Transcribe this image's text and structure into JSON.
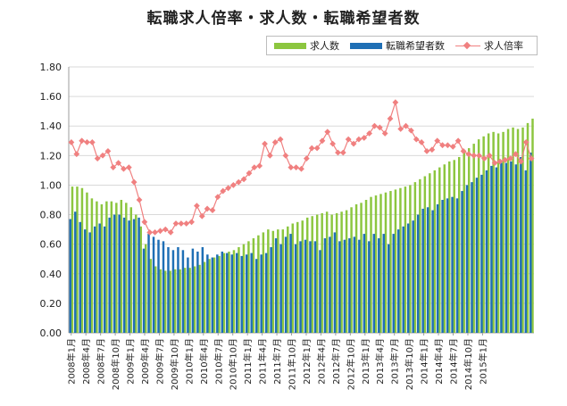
{
  "title": "転職求人倍率・求人数・転職希望者数",
  "legend": {
    "job_openings": "求人数",
    "job_seekers": "転職希望者数",
    "ratio": "求人倍率"
  },
  "colors": {
    "job_openings": "#8cc63f",
    "job_seekers": "#1f6fb5",
    "ratio": "#f08080",
    "grid": "#d9d9d9"
  },
  "chart_data": {
    "type": "bar",
    "title": "転職求人倍率・求人数・転職希望者数",
    "xlabel": "",
    "ylabel": "",
    "ylim": [
      0,
      1.8
    ],
    "yticks": [
      "0.00",
      "0.20",
      "0.40",
      "0.60",
      "0.80",
      "1.00",
      "1.20",
      "1.40",
      "1.60",
      "1.80"
    ],
    "grid": "horizontal",
    "legend_position": "top-right",
    "x_tick_labels": [
      "2008年1月",
      "2008年4月",
      "2008年7月",
      "2008年10月",
      "2009年1月",
      "2009年4月",
      "2009年7月",
      "2009年10月",
      "2010年1月",
      "2010年4月",
      "2010年7月",
      "2010年10月",
      "2011年1月",
      "2011年4月",
      "2011年7月",
      "2011年10月",
      "2012年1月",
      "2012年4月",
      "2012年7月",
      "2012年10月",
      "2013年1月",
      "2013年4月",
      "2013年7月",
      "2013年10月",
      "2014年1月",
      "2014年4月",
      "2014年7月",
      "2014年10月",
      "2015年1月"
    ],
    "x_start": "2008年1月",
    "series": [
      {
        "name": "求人数",
        "type": "bar",
        "values": [
          0.99,
          0.99,
          0.98,
          0.95,
          0.91,
          0.89,
          0.87,
          0.89,
          0.89,
          0.88,
          0.9,
          0.88,
          0.85,
          0.8,
          0.72,
          0.6,
          0.5,
          0.45,
          0.43,
          0.42,
          0.42,
          0.43,
          0.43,
          0.44,
          0.44,
          0.45,
          0.46,
          0.48,
          0.5,
          0.51,
          0.52,
          0.54,
          0.55,
          0.56,
          0.58,
          0.6,
          0.62,
          0.64,
          0.66,
          0.68,
          0.7,
          0.69,
          0.7,
          0.7,
          0.72,
          0.74,
          0.75,
          0.76,
          0.78,
          0.79,
          0.8,
          0.81,
          0.82,
          0.8,
          0.81,
          0.82,
          0.83,
          0.85,
          0.87,
          0.88,
          0.9,
          0.92,
          0.93,
          0.94,
          0.95,
          0.96,
          0.97,
          0.98,
          0.99,
          1.0,
          1.02,
          1.04,
          1.06,
          1.08,
          1.1,
          1.12,
          1.14,
          1.16,
          1.17,
          1.19,
          1.22,
          1.25,
          1.28,
          1.31,
          1.33,
          1.35,
          1.36,
          1.35,
          1.36,
          1.38,
          1.39,
          1.38,
          1.39,
          1.42,
          1.45
        ]
      },
      {
        "name": "転職希望者数",
        "type": "bar",
        "values": [
          0.77,
          0.82,
          0.75,
          0.7,
          0.68,
          0.72,
          0.74,
          0.72,
          0.78,
          0.8,
          0.8,
          0.78,
          0.76,
          0.77,
          0.78,
          0.57,
          0.67,
          0.65,
          0.63,
          0.62,
          0.58,
          0.56,
          0.58,
          0.56,
          0.51,
          0.57,
          0.55,
          0.58,
          0.53,
          0.51,
          0.53,
          0.55,
          0.54,
          0.53,
          0.54,
          0.52,
          0.53,
          0.54,
          0.5,
          0.53,
          0.54,
          0.58,
          0.64,
          0.6,
          0.65,
          0.67,
          0.6,
          0.62,
          0.63,
          0.62,
          0.62,
          0.56,
          0.64,
          0.65,
          0.68,
          0.62,
          0.63,
          0.64,
          0.65,
          0.63,
          0.67,
          0.62,
          0.67,
          0.64,
          0.67,
          0.6,
          0.67,
          0.7,
          0.72,
          0.74,
          0.76,
          0.8,
          0.84,
          0.85,
          0.83,
          0.87,
          0.9,
          0.91,
          0.92,
          0.91,
          0.96,
          1.0,
          1.02,
          1.05,
          1.07,
          1.1,
          1.13,
          1.12,
          1.15,
          1.15,
          1.16,
          1.14,
          1.19,
          1.1,
          1.22
        ]
      },
      {
        "name": "求人倍率",
        "type": "line",
        "values": [
          1.29,
          1.21,
          1.3,
          1.29,
          1.29,
          1.18,
          1.2,
          1.23,
          1.12,
          1.15,
          1.11,
          1.12,
          1.02,
          0.9,
          0.75,
          0.68,
          0.68,
          0.69,
          0.7,
          0.68,
          0.74,
          0.74,
          0.74,
          0.75,
          0.86,
          0.79,
          0.84,
          0.83,
          0.92,
          0.96,
          0.98,
          1.0,
          1.02,
          1.04,
          1.08,
          1.12,
          1.13,
          1.28,
          1.2,
          1.29,
          1.31,
          1.2,
          1.12,
          1.12,
          1.11,
          1.18,
          1.25,
          1.25,
          1.3,
          1.36,
          1.28,
          1.22,
          1.22,
          1.31,
          1.28,
          1.31,
          1.32,
          1.35,
          1.4,
          1.39,
          1.35,
          1.45,
          1.56,
          1.38,
          1.4,
          1.37,
          1.31,
          1.29,
          1.23,
          1.24,
          1.3,
          1.27,
          1.27,
          1.26,
          1.3,
          1.23,
          1.21,
          1.2,
          1.2,
          1.18,
          1.2,
          1.15,
          1.16,
          1.17,
          1.18,
          1.21,
          1.16,
          1.29,
          1.18
        ]
      }
    ]
  }
}
